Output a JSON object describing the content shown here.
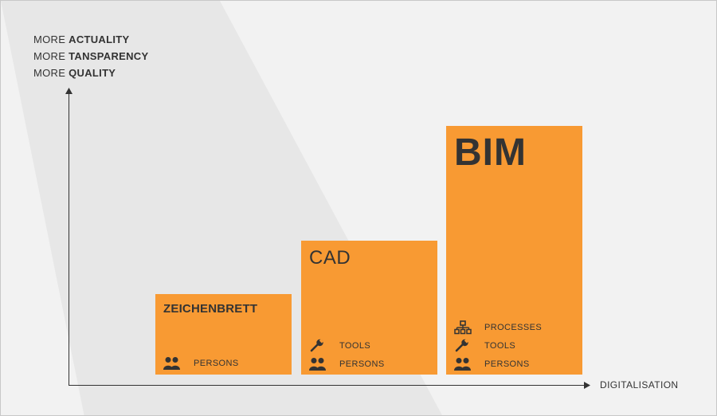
{
  "y_axis_lines": [
    {
      "prefix": "MORE ",
      "keyword": "ACTUALITY"
    },
    {
      "prefix": "MORE ",
      "keyword": "TANSPARENCY"
    },
    {
      "prefix": "MORE ",
      "keyword": "QUALITY"
    }
  ],
  "x_axis_label": "DIGITALISATION",
  "colors": {
    "bar": "#f89a33",
    "text": "#333333",
    "axis": "#333333",
    "background": "#f2f2f2"
  },
  "bars": [
    {
      "title": "ZEICHENBRETT",
      "features": [
        {
          "label": "PERSONS",
          "icon": "persons-icon"
        }
      ]
    },
    {
      "title": "CAD",
      "features": [
        {
          "label": "TOOLS",
          "icon": "wrench-icon"
        },
        {
          "label": "PERSONS",
          "icon": "persons-icon"
        }
      ]
    },
    {
      "title": "BIM",
      "features": [
        {
          "label": "PROCESSES",
          "icon": "hierarchy-icon"
        },
        {
          "label": "TOOLS",
          "icon": "wrench-icon"
        },
        {
          "label": "PERSONS",
          "icon": "persons-icon"
        }
      ]
    }
  ]
}
